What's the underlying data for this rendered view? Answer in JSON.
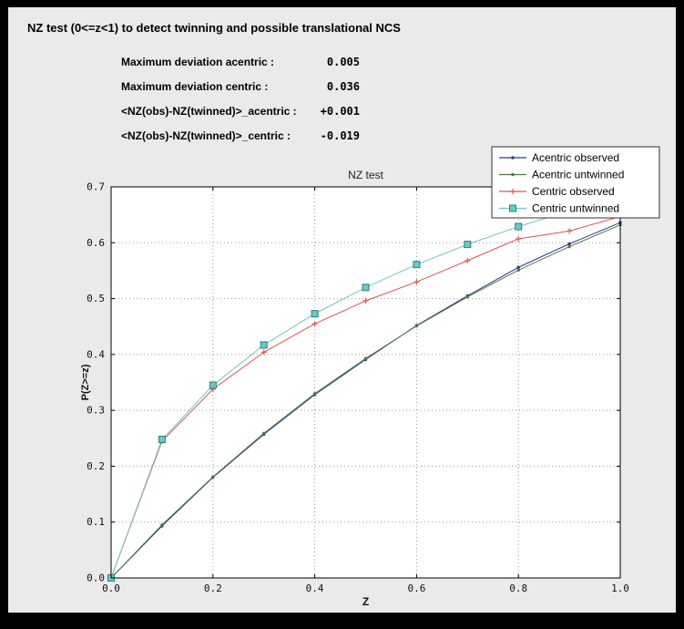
{
  "window": {
    "frame_color": "#000000",
    "panel_color": "#eaeaea"
  },
  "header": {
    "title": "NZ test (0<=z<1) to detect twinning and possible translational NCS"
  },
  "stats": [
    {
      "label": "Maximum deviation acentric :",
      "value": "0.005"
    },
    {
      "label": "Maximum deviation centric :",
      "value": "0.036"
    },
    {
      "label": "<NZ(obs)-NZ(twinned)>_acentric :",
      "value": "+0.001"
    },
    {
      "label": "<NZ(obs)-NZ(twinned)>_centric :",
      "value": "-0.019"
    }
  ],
  "chart_data": {
    "type": "line",
    "title": "NZ test",
    "xlabel": "Z",
    "ylabel": "P(Z>=z)",
    "xlim": [
      0.0,
      1.0
    ],
    "ylim": [
      0.0,
      0.7
    ],
    "xticks": [
      0.0,
      0.2,
      0.4,
      0.6,
      0.8,
      1.0
    ],
    "yticks": [
      0.0,
      0.1,
      0.2,
      0.3,
      0.4,
      0.5,
      0.6,
      0.7
    ],
    "grid": true,
    "grid_style": "dotted",
    "legend_position": "upper right",
    "plot_bg": "#ffffff",
    "x": [
      0.0,
      0.1,
      0.2,
      0.3,
      0.4,
      0.5,
      0.6,
      0.7,
      0.8,
      0.9,
      1.0
    ],
    "series": [
      {
        "name": "Acentric observed",
        "color": "#2c3a94",
        "marker": "dot",
        "values": [
          0.0,
          0.093,
          0.18,
          0.257,
          0.328,
          0.391,
          0.452,
          0.505,
          0.556,
          0.598,
          0.636
        ]
      },
      {
        "name": "Acentric untwinned",
        "color": "#527a3e",
        "marker": "dot",
        "values": [
          0.0,
          0.095,
          0.181,
          0.259,
          0.33,
          0.393,
          0.451,
          0.503,
          0.551,
          0.593,
          0.632
        ]
      },
      {
        "name": "Centric observed",
        "color": "#e0544e",
        "marker": "plus",
        "values": [
          0.0,
          0.245,
          0.338,
          0.404,
          0.455,
          0.496,
          0.53,
          0.568,
          0.607,
          0.621,
          0.647
        ]
      },
      {
        "name": "Centric untwinned",
        "color": "#6cc8c6",
        "marker": "square",
        "marker_edge": "#2e7f7d",
        "values": [
          0.0,
          0.248,
          0.345,
          0.417,
          0.473,
          0.52,
          0.561,
          0.597,
          0.629,
          0.657,
          0.683
        ]
      }
    ]
  }
}
